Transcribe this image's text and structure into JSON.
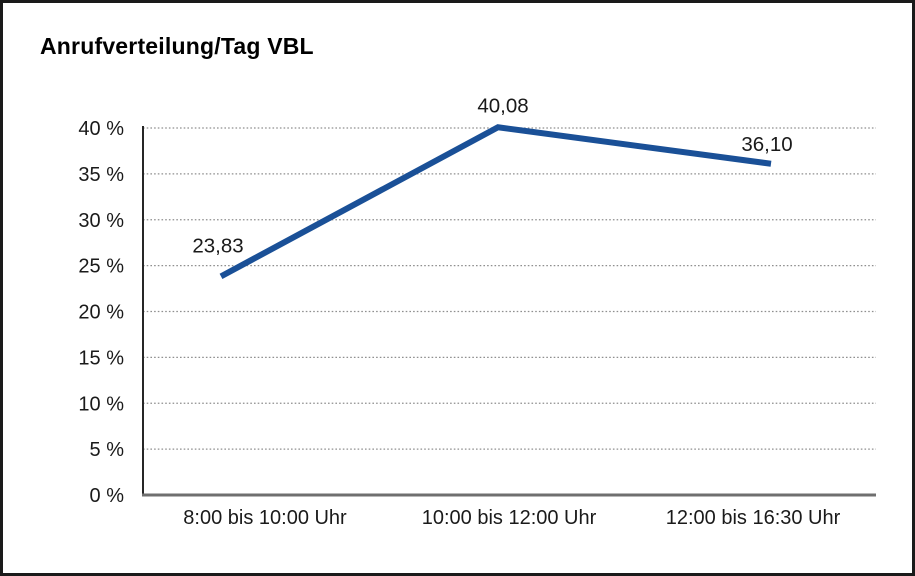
{
  "frame": {
    "background": "#ffffff",
    "border_color": "#1a1a1a"
  },
  "chart_data": {
    "type": "line",
    "title": "Anrufverteilung/Tag VBL",
    "categories": [
      "8:00 bis 10:00 Uhr",
      "10:00 bis 12:00 Uhr",
      "12:00 bis 16:30 Uhr"
    ],
    "series": [
      {
        "name": "Anrufverteilung/Tag VBL",
        "values": [
          23.83,
          40.08,
          36.1
        ],
        "point_labels": [
          "23,83",
          "40,08",
          "36,10"
        ],
        "color": "#1a5097"
      }
    ],
    "xlabel": "",
    "ylabel": "",
    "ylim": [
      0,
      40
    ],
    "y_tick_step": 5,
    "y_tick_labels": [
      "0 %",
      "5 %",
      "10 %",
      "15 %",
      "20 %",
      "25 %",
      "30 %",
      "35 %",
      "40 %"
    ],
    "grid": "horizontal-dotted",
    "legend": "none"
  },
  "colors": {
    "line": "#1a5097",
    "gridline": "#8f8f8f",
    "y_axis": "#262626",
    "x_axis": "#6f6f6f",
    "text": "#1a1a1a",
    "title": "#000000"
  }
}
